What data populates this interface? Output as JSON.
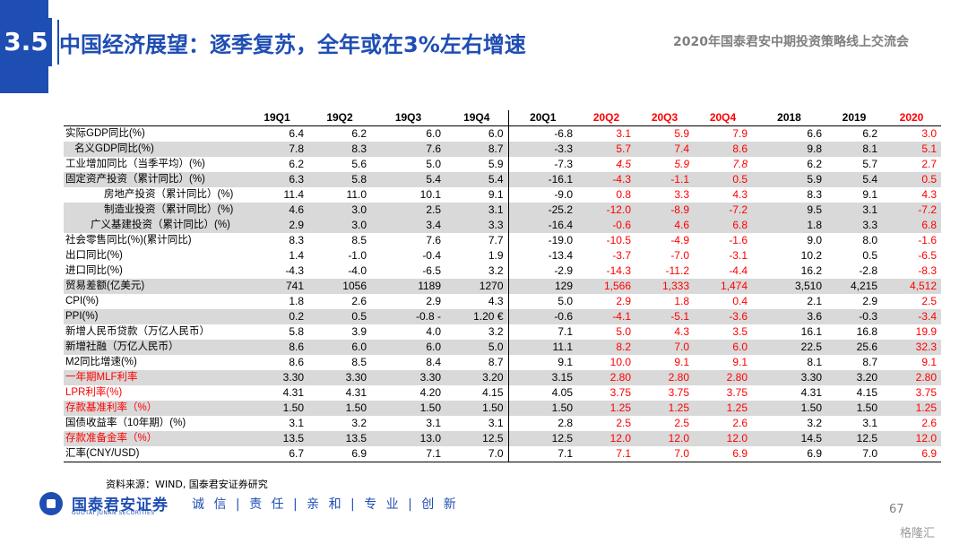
{
  "header": {
    "section": "3.5",
    "title": "中国经济展望：逐季复苏，全年或在3%左右增速",
    "event": "2020年国泰君安中期投资策略线上交流会"
  },
  "table": {
    "columns": [
      "19Q1",
      "19Q2",
      "19Q3",
      "19Q4",
      "20Q1",
      "20Q2",
      "20Q3",
      "20Q4",
      "2018",
      "2019",
      "2020"
    ],
    "rows": [
      {
        "label": "实际GDP同比(%)",
        "values": [
          "6.4",
          "6.2",
          "6.0",
          "6.0",
          "-6.8",
          "3.1",
          "5.9",
          "7.9",
          "6.6",
          "6.2",
          "3.0"
        ]
      },
      {
        "label": "名义GDP同比(%)",
        "values": [
          "7.8",
          "8.3",
          "7.6",
          "8.7",
          "-3.3",
          "5.7",
          "7.4",
          "8.6",
          "9.8",
          "8.1",
          "5.1"
        ]
      },
      {
        "label": "工业增加同比（当季平均）(%)",
        "values": [
          "6.2",
          "5.6",
          "5.0",
          "5.9",
          "-7.3",
          "4.5",
          "5.9",
          "7.8",
          "6.2",
          "5.7",
          "2.7"
        ]
      },
      {
        "label": "固定资产投资（累计同比）(%)",
        "values": [
          "6.3",
          "5.8",
          "5.4",
          "5.4",
          "-16.1",
          "-4.3",
          "-1.1",
          "0.5",
          "5.9",
          "5.4",
          "0.5"
        ]
      },
      {
        "label": "房地产投资（累计同比）(%)",
        "values": [
          "11.4",
          "11.0",
          "10.1",
          "9.1",
          "-9.0",
          "0.8",
          "3.3",
          "4.3",
          "8.3",
          "9.1",
          "4.3"
        ]
      },
      {
        "label": "制造业投资（累计同比）(%)",
        "values": [
          "4.6",
          "3.0",
          "2.5",
          "3.1",
          "-25.2",
          "-12.0",
          "-8.9",
          "-7.2",
          "9.5",
          "3.1",
          "-7.2"
        ]
      },
      {
        "label": "广义基建投资（累计同比）(%)",
        "values": [
          "2.9",
          "3.0",
          "3.4",
          "3.3",
          "-16.4",
          "-0.6",
          "4.6",
          "6.8",
          "1.8",
          "3.3",
          "6.8"
        ]
      },
      {
        "label": "社会零售同比(%)(累计同比)",
        "values": [
          "8.3",
          "8.5",
          "7.6",
          "7.7",
          "-19.0",
          "-10.5",
          "-4.9",
          "-1.6",
          "9.0",
          "8.0",
          "-1.6"
        ]
      },
      {
        "label": "出口同比(%)",
        "values": [
          "1.4",
          "-1.0",
          "-0.4",
          "1.9",
          "-13.4",
          "-3.7",
          "-7.0",
          "-3.1",
          "10.2",
          "0.5",
          "-6.5"
        ]
      },
      {
        "label": "进口同比(%)",
        "values": [
          "-4.3",
          "-4.0",
          "-6.5",
          "3.2",
          "-2.9",
          "-14.3",
          "-11.2",
          "-4.4",
          "16.2",
          "-2.8",
          "-8.3"
        ]
      },
      {
        "label": "贸易差额(亿美元)",
        "values": [
          "741",
          "1056",
          "1189",
          "1270",
          "129",
          "1,566",
          "1,333",
          "1,474",
          "3,510",
          "4,215",
          "4,512"
        ]
      },
      {
        "label": "CPI(%)",
        "values": [
          "1.8",
          "2.6",
          "2.9",
          "4.3",
          "5.0",
          "2.9",
          "1.8",
          "0.4",
          "2.1",
          "2.9",
          "2.5"
        ]
      },
      {
        "label": "PPI(%)",
        "values": [
          "0.2",
          "0.5",
          "-0.8 -",
          "1.20 €",
          "-0.6",
          "-4.1",
          "-5.1",
          "-3.6",
          "3.6",
          "-0.3",
          "-3.4"
        ]
      },
      {
        "label": "新增人民币贷款（万亿人民币）",
        "values": [
          "5.8",
          "3.9",
          "4.0",
          "3.2",
          "7.1",
          "5.0",
          "4.3",
          "3.5",
          "16.1",
          "16.8",
          "19.9"
        ]
      },
      {
        "label": "新增社融（万亿人民币）",
        "values": [
          "8.6",
          "6.0",
          "6.0",
          "5.0",
          "11.1",
          "8.2",
          "7.0",
          "6.0",
          "22.5",
          "25.6",
          "32.3"
        ]
      },
      {
        "label": "M2同比增速(%)",
        "values": [
          "8.6",
          "8.5",
          "8.4",
          "8.7",
          "9.1",
          "10.0",
          "9.1",
          "9.1",
          "8.1",
          "8.7",
          "9.1"
        ]
      },
      {
        "label": "一年期MLF利率",
        "values": [
          "3.30",
          "3.30",
          "3.30",
          "3.20",
          "3.15",
          "2.80",
          "2.80",
          "2.80",
          "3.30",
          "3.20",
          "2.80"
        ]
      },
      {
        "label": "LPR利率(%)",
        "values": [
          "4.31",
          "4.31",
          "4.20",
          "4.15",
          "4.05",
          "3.75",
          "3.75",
          "3.75",
          "4.31",
          "4.15",
          "3.75"
        ]
      },
      {
        "label": "存款基准利率（%）",
        "values": [
          "1.50",
          "1.50",
          "1.50",
          "1.50",
          "1.50",
          "1.25",
          "1.25",
          "1.25",
          "1.50",
          "1.50",
          "1.25"
        ]
      },
      {
        "label": "国债收益率（10年期）(%)",
        "values": [
          "3.1",
          "3.2",
          "3.1",
          "3.1",
          "2.8",
          "2.5",
          "2.5",
          "2.6",
          "3.2",
          "3.1",
          "2.6"
        ]
      },
      {
        "label": "存款准备金率（%）",
        "values": [
          "13.5",
          "13.5",
          "13.0",
          "12.5",
          "12.5",
          "12.0",
          "12.0",
          "12.0",
          "14.5",
          "12.5",
          "12.0"
        ]
      },
      {
        "label": "汇率(CNY/USD)",
        "values": [
          "6.7",
          "6.9",
          "7.1",
          "7.0",
          "7.1",
          "7.1",
          "7.0",
          "6.9",
          "6.9",
          "7.0",
          "6.9"
        ]
      }
    ]
  },
  "footer": {
    "source": "资料来源：WIND, 国泰君安证券研究",
    "company_cn": "国泰君安证券",
    "company_en": "GUOTAI JUNAN SECURITIES",
    "motto": "诚 信 | 责 任 | 亲 和 | 专 业 | 创 新",
    "page": "67",
    "watermark": "格隆汇"
  },
  "colors": {
    "brand": "#1f4eb3",
    "forecast": "#ff0000",
    "shade": "#d9d9d9"
  }
}
